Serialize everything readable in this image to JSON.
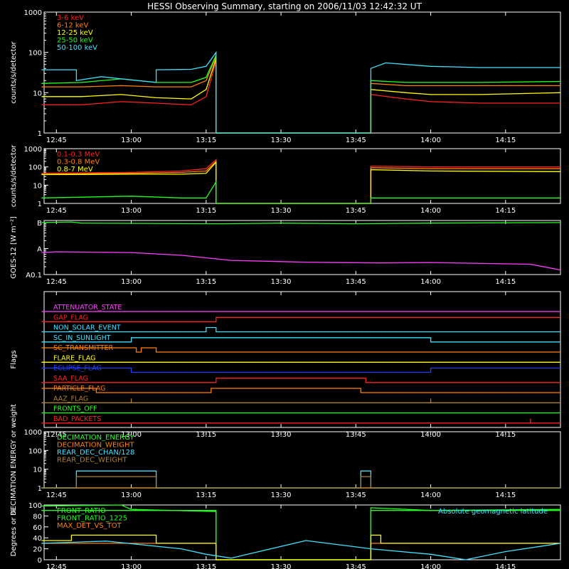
{
  "title": "HESSI Observing Summary, starting on 2006/11/03 12:42:32 UT",
  "time_axis": {
    "range_minutes": [
      "12:42:32",
      "14:26"
    ],
    "ticks": [
      "12:45",
      "13:00",
      "13:15",
      "13:30",
      "13:45",
      "14:00",
      "14:15"
    ]
  },
  "chart_data": [
    {
      "type": "line",
      "title": "",
      "ylabel": "counts/s/detector",
      "yscale": "log",
      "ylim": [
        1,
        1000
      ],
      "yticks": [
        "1",
        "10",
        "100",
        "1000"
      ],
      "legend_position": "top-left",
      "series": [
        {
          "name": "3-6 keV",
          "color": "#ff2020",
          "x": [
            "12:42",
            "12:50",
            "12:58",
            "13:05",
            "13:12",
            "13:15",
            "13:17",
            "13:17",
            "13:48",
            "13:48",
            "13:55",
            "14:00",
            "14:10",
            "14:26"
          ],
          "y": [
            5,
            5,
            6,
            5.5,
            5,
            8,
            60,
            1,
            1,
            9,
            7,
            6,
            5.5,
            5.5
          ]
        },
        {
          "name": "6-12 keV",
          "color": "#ff8000",
          "x": [
            "12:42",
            "12:50",
            "12:58",
            "13:05",
            "13:12",
            "13:15",
            "13:17",
            "13:17",
            "13:48",
            "13:48",
            "13:55",
            "14:00",
            "14:10",
            "14:26"
          ],
          "y": [
            14,
            14,
            15,
            14,
            14,
            20,
            80,
            1,
            1,
            17,
            15,
            15,
            15,
            15
          ]
        },
        {
          "name": "12-25 keV",
          "color": "#ffff00",
          "x": [
            "12:42",
            "12:50",
            "12:58",
            "13:05",
            "13:12",
            "13:15",
            "13:17",
            "13:17",
            "13:48",
            "13:48",
            "13:55",
            "14:00",
            "14:10",
            "14:26"
          ],
          "y": [
            8,
            8,
            9,
            7.5,
            7,
            12,
            70,
            1,
            1,
            12,
            10,
            9,
            9,
            10
          ]
        },
        {
          "name": "25-50 keV",
          "color": "#20ff20",
          "x": [
            "12:42",
            "12:50",
            "12:58",
            "13:05",
            "13:12",
            "13:15",
            "13:17",
            "13:17",
            "13:48",
            "13:48",
            "13:55",
            "14:00",
            "14:10",
            "14:26"
          ],
          "y": [
            17,
            18,
            22,
            18,
            18,
            24,
            85,
            1,
            1,
            20,
            18,
            18,
            18,
            19
          ]
        },
        {
          "name": "50-100 keV",
          "color": "#40e0ff",
          "x": [
            "12:42",
            "12:49",
            "12:49",
            "12:54",
            "12:58",
            "13:05",
            "13:05",
            "13:12",
            "13:15",
            "13:17",
            "13:17",
            "13:48",
            "13:48",
            "13:51",
            "13:60",
            "14:10",
            "14:26"
          ],
          "y": [
            37,
            37,
            20,
            25,
            22,
            18,
            37,
            38,
            45,
            100,
            1,
            1,
            40,
            55,
            45,
            42,
            42
          ]
        }
      ]
    },
    {
      "type": "line",
      "title": "",
      "ylabel": "counts/s/detector",
      "yscale": "log",
      "ylim": [
        1,
        1000
      ],
      "yticks": [
        "1",
        "10",
        "100",
        "1000"
      ],
      "legend_position": "top-left",
      "series": [
        {
          "name": "0.1-0.3 MeV",
          "color": "#ff2020",
          "x": [
            "12:42",
            "13:00",
            "13:10",
            "13:15",
            "13:17",
            "13:17",
            "13:48",
            "13:48",
            "14:00",
            "14:26"
          ],
          "y": [
            45,
            50,
            60,
            80,
            250,
            1,
            1,
            110,
            100,
            100
          ]
        },
        {
          "name": "0.3-0.8 MeV",
          "color": "#ff8000",
          "x": [
            "12:42",
            "13:00",
            "13:10",
            "13:15",
            "13:17",
            "13:17",
            "13:48",
            "13:48",
            "14:00",
            "14:26"
          ],
          "y": [
            40,
            45,
            50,
            60,
            200,
            1,
            1,
            90,
            80,
            80
          ]
        },
        {
          "name": "0.8-7 MeV",
          "color": "#ffff00",
          "x": [
            "12:42",
            "13:00",
            "13:10",
            "13:15",
            "13:17",
            "13:17",
            "13:48",
            "13:48",
            "14:00",
            "14:26"
          ],
          "y": [
            38,
            40,
            40,
            45,
            180,
            1,
            1,
            70,
            60,
            55
          ]
        },
        {
          "name": "",
          "color": "#20ff20",
          "x": [
            "12:42",
            "13:00",
            "13:10",
            "13:15",
            "13:17",
            "13:17",
            "13:48",
            "13:48",
            "14:00",
            "14:26"
          ],
          "y": [
            2,
            2.5,
            2,
            2,
            15,
            1,
            1,
            2,
            2,
            2
          ]
        }
      ]
    },
    {
      "type": "line",
      "title": "",
      "ylabel": "GOES-12 [W m⁻²]",
      "yscale": "log",
      "ylim": [
        0.1,
        12
      ],
      "yticks": [
        "A0.1",
        "A",
        "B"
      ],
      "series": [
        {
          "name": "",
          "color": "#20ff20",
          "x": [
            "12:42",
            "12:48",
            "12:50",
            "13:18",
            "13:30",
            "13:45",
            "14:00",
            "14:26"
          ],
          "y": [
            10,
            10.5,
            9.5,
            9,
            9.5,
            9,
            9.5,
            10
          ]
        },
        {
          "name": "",
          "color": "#ff40ff",
          "x": [
            "12:42",
            "12:45",
            "13:00",
            "13:10",
            "13:20",
            "13:35",
            "13:50",
            "14:00",
            "14:20",
            "14:26"
          ],
          "y": [
            0.7,
            0.75,
            0.7,
            0.55,
            0.35,
            0.3,
            0.28,
            0.29,
            0.25,
            0.15
          ]
        }
      ]
    },
    {
      "type": "table",
      "title": "",
      "ylabel": "Flags",
      "series": [
        {
          "name": "ATTENUATOR_STATE",
          "color": "#ff40ff",
          "x": [
            "12:42",
            "14:26"
          ],
          "state": [
            0,
            0
          ]
        },
        {
          "name": "GAP_FLAG",
          "color": "#ff2020",
          "x": [
            "12:42",
            "13:17",
            "13:17",
            "14:26"
          ],
          "state": [
            0,
            0,
            1,
            1
          ]
        },
        {
          "name": "NON_SOLAR_EVENT",
          "color": "#40e0ff",
          "x": [
            "12:42",
            "13:15",
            "13:15",
            "13:17",
            "13:17",
            "14:26"
          ],
          "state": [
            0,
            0,
            1,
            1,
            0,
            0
          ]
        },
        {
          "name": "SC_IN_SUNLIGHT",
          "color": "#40e0ff",
          "x": [
            "12:42",
            "13:00",
            "13:00",
            "14:00",
            "14:00",
            "14:26"
          ],
          "state": [
            0,
            0,
            1,
            1,
            0,
            0
          ]
        },
        {
          "name": "SC_TRANSMITTER",
          "color": "#ff8000",
          "x": [
            "12:42",
            "13:01",
            "13:01",
            "13:02",
            "13:02",
            "13:05",
            "13:05",
            "14:26"
          ],
          "state": [
            1,
            1,
            0,
            0,
            1,
            1,
            0,
            0
          ]
        },
        {
          "name": "FLARE_FLAG",
          "color": "#ffff00",
          "x": [
            "12:42",
            "14:26"
          ],
          "state": [
            0,
            0
          ]
        },
        {
          "name": "ECLIPSE_FLAG",
          "color": "#2040ff",
          "x": [
            "12:42",
            "13:00",
            "13:00",
            "14:00",
            "14:00",
            "14:26"
          ],
          "state": [
            1,
            1,
            0,
            0,
            1,
            1
          ]
        },
        {
          "name": "SAA_FLAG",
          "color": "#ff2020",
          "x": [
            "12:42",
            "13:17",
            "13:17",
            "13:47",
            "13:47",
            "14:26"
          ],
          "state": [
            0,
            0,
            1,
            1,
            0,
            0
          ]
        },
        {
          "name": "PARTICLE_FLAG",
          "color": "#ff8000",
          "x": [
            "12:42",
            "12:53",
            "12:53",
            "13:16",
            "13:16",
            "13:46",
            "13:46",
            "14:26"
          ],
          "state": [
            1,
            1,
            0,
            0,
            1,
            1,
            0,
            0
          ]
        },
        {
          "name": "AAZ_FLAG",
          "color": "#b08030",
          "x": [
            "12:42",
            "13:00",
            "13:00",
            "13:00",
            "13:00",
            "14:00",
            "14:00",
            "14:00",
            "14:00",
            "14:26"
          ],
          "state": [
            0,
            0,
            1,
            1,
            0,
            0,
            1,
            1,
            0,
            0
          ]
        },
        {
          "name": "FRONTS_OFF",
          "color": "#20ff20",
          "x": [
            "12:42",
            "14:26"
          ],
          "state": [
            0,
            0
          ]
        },
        {
          "name": "BAD_PACKETS",
          "color": "#ff2020",
          "x": [
            "12:42",
            "14:20",
            "14:20",
            "14:20",
            "14:20",
            "14:26"
          ],
          "state": [
            0,
            0,
            1,
            1,
            0,
            0
          ]
        }
      ]
    },
    {
      "type": "line",
      "title": "",
      "ylabel": "DECIMATION ENERGY or weight",
      "yscale": "log",
      "ylim": [
        1,
        1000
      ],
      "yticks": [
        "1",
        "10",
        "100",
        "1000"
      ],
      "legend_position": "top-left",
      "series": [
        {
          "name": "DECIMATION_ENERGY",
          "color": "#20ff20",
          "x": [
            "12:42",
            "14:26"
          ],
          "y": [
            1,
            1
          ]
        },
        {
          "name": "DECIMATION_WEIGHT",
          "color": "#ff8000",
          "x": [
            "12:42",
            "14:26"
          ],
          "y": [
            1,
            1
          ]
        },
        {
          "name": "REAR_DEC_CHAN/128",
          "color": "#40e0ff",
          "x": [
            "12:42",
            "12:49",
            "12:49",
            "13:05",
            "13:05",
            "13:46",
            "13:46",
            "13:48",
            "13:48",
            "14:26"
          ],
          "y": [
            1,
            1,
            8,
            8,
            1,
            1,
            8,
            8,
            1,
            1
          ]
        },
        {
          "name": "REAR_DEC_WEIGHT",
          "color": "#b08030",
          "x": [
            "12:42",
            "12:49",
            "12:49",
            "13:05",
            "13:05",
            "13:46",
            "13:46",
            "13:48",
            "13:48",
            "14:26"
          ],
          "y": [
            1,
            1,
            4,
            4,
            1,
            1,
            4,
            4,
            1,
            1
          ]
        }
      ]
    },
    {
      "type": "line",
      "title": "",
      "ylabel": "Degrees or %",
      "yscale": "linear",
      "ylim": [
        0,
        100
      ],
      "yticks": [
        "0",
        "20",
        "40",
        "60",
        "80",
        "100"
      ],
      "legend_position": "top-left",
      "annotation": "Absolute geomagnetic latitude",
      "series": [
        {
          "name": "FRONT_RATIO",
          "color": "#20ff20",
          "x": [
            "12:42",
            "12:58",
            "13:00",
            "13:17",
            "13:17",
            "13:48",
            "13:48",
            "14:00",
            "14:26"
          ],
          "y": [
            98,
            100,
            92,
            88,
            0,
            0,
            95,
            90,
            92
          ]
        },
        {
          "name": "FRONT_RATIO_1225",
          "color": "#20ff20",
          "x": [
            "12:42",
            "13:17",
            "13:17",
            "13:48",
            "13:48",
            "14:26"
          ],
          "y": [
            90,
            90,
            0,
            0,
            90,
            90
          ]
        },
        {
          "name": "MAX_DET_VS_TOT",
          "color": "#ff8000",
          "x": [
            "12:42",
            "13:17",
            "13:17",
            "13:48",
            "13:48",
            "14:26"
          ],
          "y": [
            30,
            30,
            0,
            0,
            30,
            30
          ]
        },
        {
          "name": "",
          "color": "#ffff00",
          "x": [
            "12:42",
            "12:48",
            "12:48",
            "13:05",
            "13:05",
            "13:17",
            "13:17",
            "13:48",
            "13:48",
            "13:50",
            "13:50",
            "14:26"
          ],
          "y": [
            35,
            35,
            45,
            45,
            30,
            30,
            0,
            0,
            45,
            45,
            30,
            30
          ]
        },
        {
          "name": "",
          "color": "#40e0ff",
          "x": [
            "12:42",
            "12:55",
            "13:10",
            "13:15",
            "13:20",
            "13:35",
            "13:48",
            "14:00",
            "14:07",
            "14:15",
            "14:26"
          ],
          "y": [
            30,
            34,
            20,
            10,
            3,
            35,
            20,
            10,
            0,
            15,
            30
          ]
        }
      ]
    }
  ]
}
